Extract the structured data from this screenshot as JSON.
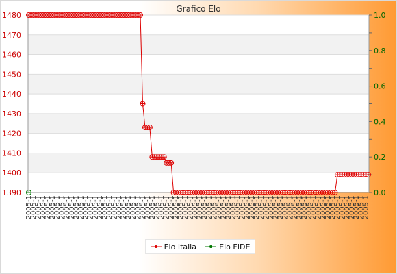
{
  "chart_data": {
    "type": "line",
    "title": "Grafico Elo",
    "xlabel": "",
    "ylabel": "",
    "ylim_left": [
      1390,
      1480
    ],
    "ylim_right": [
      0.0,
      1.0
    ],
    "left_ticks": [
      "1480",
      "1470",
      "1460",
      "1450",
      "1440",
      "1430",
      "1420",
      "1410",
      "1400",
      "1390"
    ],
    "right_ticks": [
      "1.0",
      "0.8",
      "0.6",
      "0.4",
      "0.2",
      "0.0"
    ],
    "grid": true,
    "legend": "bottom",
    "x_tick_label": "2005-1",
    "x_count": 144,
    "series": [
      {
        "name": "Elo Italia",
        "color": "#dd0000",
        "axis": "left",
        "segments": [
          {
            "count": 48,
            "value": 1480
          },
          {
            "count": 1,
            "value": 1435
          },
          {
            "count": 3,
            "value": 1423
          },
          {
            "count": 6,
            "value": 1408
          },
          {
            "count": 3,
            "value": 1405
          },
          {
            "count": 69,
            "value": 1390
          },
          {
            "count": 14,
            "value": 1399
          }
        ]
      },
      {
        "name": "Elo FIDE",
        "color": "#007700",
        "axis": "right",
        "segments": [
          {
            "count": 1,
            "value": 0.0
          }
        ]
      }
    ]
  }
}
